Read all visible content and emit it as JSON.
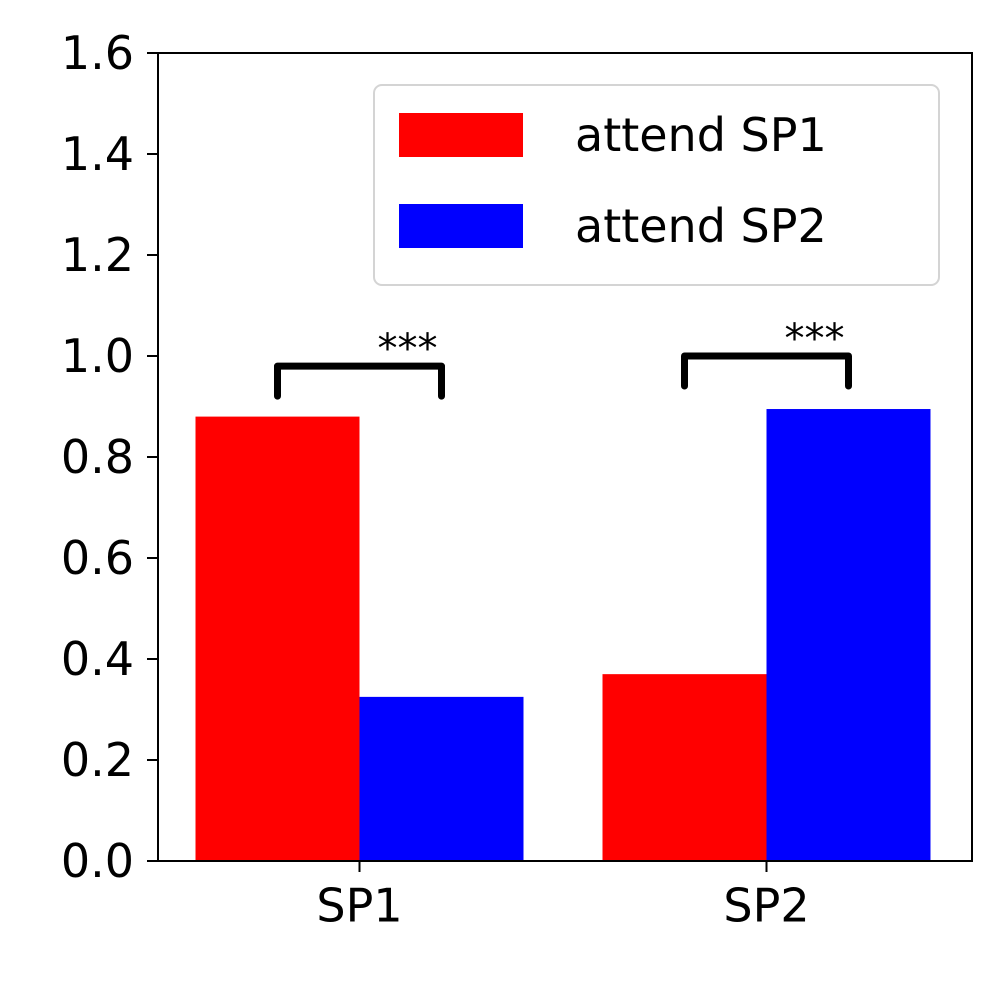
{
  "chart_data": {
    "type": "bar",
    "title": "",
    "xlabel": "",
    "ylabel": "",
    "categories": [
      "SP1",
      "SP2"
    ],
    "series": [
      {
        "name": "attend SP1",
        "color": "#ff0000",
        "values": [
          0.88,
          0.37
        ]
      },
      {
        "name": "attend SP2",
        "color": "#0000ff",
        "values": [
          0.325,
          0.895
        ]
      }
    ],
    "ylim": [
      0,
      1.6
    ],
    "yticks": [
      0.0,
      0.2,
      0.4,
      0.6,
      0.8,
      1.0,
      1.2,
      1.4,
      1.6
    ],
    "ytick_labels": [
      "0.0",
      "0.2",
      "0.4",
      "0.6",
      "0.8",
      "1.0",
      "1.2",
      "1.4",
      "1.6"
    ],
    "grid": false,
    "legend_position": "top-right",
    "annotations": [
      {
        "category": "SP1",
        "text": "***",
        "bracket_y": 0.98
      },
      {
        "category": "SP2",
        "text": "***",
        "bracket_y": 1.0
      }
    ]
  }
}
